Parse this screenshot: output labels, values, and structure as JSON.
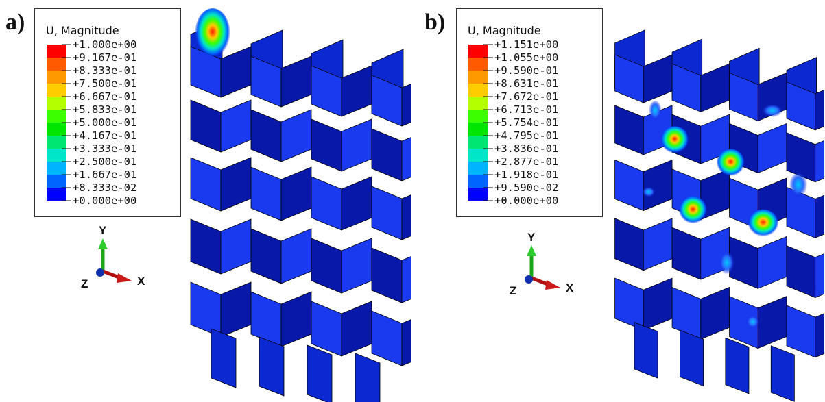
{
  "panels": [
    {
      "label": "a)",
      "legend_title": "U, Magnitude",
      "legend_values": [
        "+1.000e+00",
        "+9.167e-01",
        "+8.333e-01",
        "+7.500e-01",
        "+6.667e-01",
        "+5.833e-01",
        "+5.000e-01",
        "+4.167e-01",
        "+3.333e-01",
        "+2.500e-01",
        "+1.667e-01",
        "+8.333e-02",
        "+0.000e+00"
      ],
      "triad": {
        "y": "Y",
        "x": "X",
        "z": "Z"
      }
    },
    {
      "label": "b)",
      "legend_title": "U, Magnitude",
      "legend_values": [
        "+1.151e+00",
        "+1.055e+00",
        "+9.590e-01",
        "+8.631e-01",
        "+7.672e-01",
        "+6.713e-01",
        "+5.754e-01",
        "+4.795e-01",
        "+3.836e-01",
        "+2.877e-01",
        "+1.918e-01",
        "+9.590e-02",
        "+0.000e+00"
      ],
      "triad": {
        "y": "Y",
        "x": "X",
        "z": "Z"
      }
    }
  ],
  "colormap": [
    "#ff0000",
    "#ff5a00",
    "#ff9900",
    "#ffcc00",
    "#b4ff00",
    "#3cff00",
    "#00e600",
    "#00e673",
    "#00e6c8",
    "#00b4ff",
    "#0064ff",
    "#0000ff"
  ],
  "mesh_color": "#0a22d8"
}
